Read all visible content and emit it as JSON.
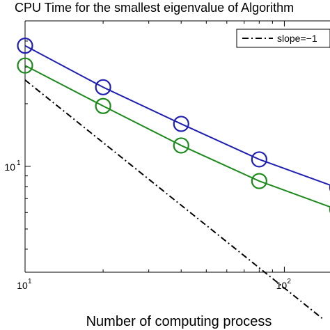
{
  "title": "CPU Time for the smallest eigenvalue of Algorithm",
  "chart_data": {
    "type": "line",
    "title": "CPU Time for the smallest eigenvalue of Algorithm",
    "xlabel": "Number of computing process",
    "ylabel": "",
    "xscale": "log",
    "yscale": "log",
    "xlim": [
      10,
      150
    ],
    "ylim": [
      3.1,
      50
    ],
    "x_ticks": [
      {
        "value": 10,
        "base": "10",
        "exp": "1"
      },
      {
        "value": 100,
        "base": "10",
        "exp": "2"
      }
    ],
    "y_ticks": [
      {
        "value": 10,
        "base": "10",
        "exp": "1"
      }
    ],
    "grid": false,
    "legend_position": "top-right",
    "series": [
      {
        "color": "#1f1fb4",
        "marker": "circle",
        "style": "solid",
        "x": [
          10,
          20,
          40,
          80,
          160
        ],
        "y": [
          38,
          24,
          16,
          10.8,
          7.9
        ]
      },
      {
        "color": "#1b8a1b",
        "marker": "circle",
        "style": "solid",
        "x": [
          10,
          20,
          40,
          80,
          160
        ],
        "y": [
          30.5,
          19.5,
          12.6,
          8.5,
          6.2
        ]
      },
      {
        "name": "slope=−1",
        "color": "#000000",
        "marker": "none",
        "style": "dashdot",
        "x": [
          10,
          140
        ],
        "y": [
          26,
          1.86
        ]
      }
    ]
  }
}
